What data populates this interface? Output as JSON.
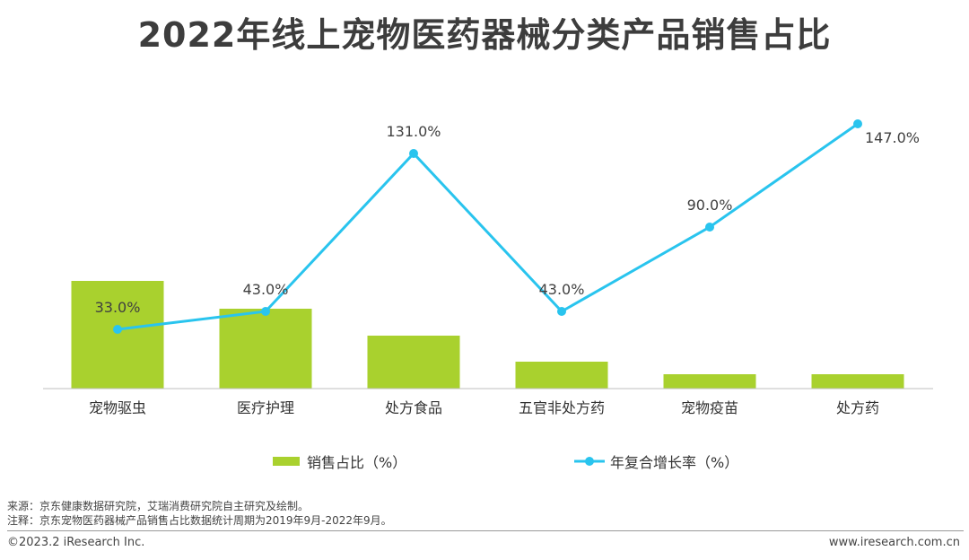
{
  "chart_data": {
    "type": "bar+line",
    "title": "2022年线上宠物医药器械分类产品销售占比",
    "categories": [
      "宠物驱虫",
      "医疗护理",
      "处方食品",
      "五官非处方药",
      "宠物疫苗",
      "处方药"
    ],
    "series": [
      {
        "name": "销售占比（%）",
        "type": "bar",
        "color": "#a9d12e",
        "values": [
          40,
          30,
          20,
          10,
          5,
          5
        ]
      },
      {
        "name": "年复合增长率（%）",
        "type": "line",
        "color": "#29c4ee",
        "values": [
          33.0,
          43.0,
          131.0,
          43.0,
          90.0,
          147.0
        ],
        "labels": [
          "33.0%",
          "43.0%",
          "131.0%",
          "43.0%",
          "90.0%",
          "147.0%"
        ]
      }
    ],
    "bar_axis_range": [
      0,
      100
    ],
    "line_axis_range": [
      -20,
      160
    ],
    "legend_position": "bottom"
  },
  "footer": {
    "source": "来源：京东健康数据研究院，艾瑞消费研究院自主研究及绘制。",
    "note": "注释：京东宠物医药器械产品销售占比数据统计周期为2019年9月-2022年9月。",
    "copyright": "©2023.2 iResearch Inc.",
    "website": "www.iresearch.com.cn"
  }
}
